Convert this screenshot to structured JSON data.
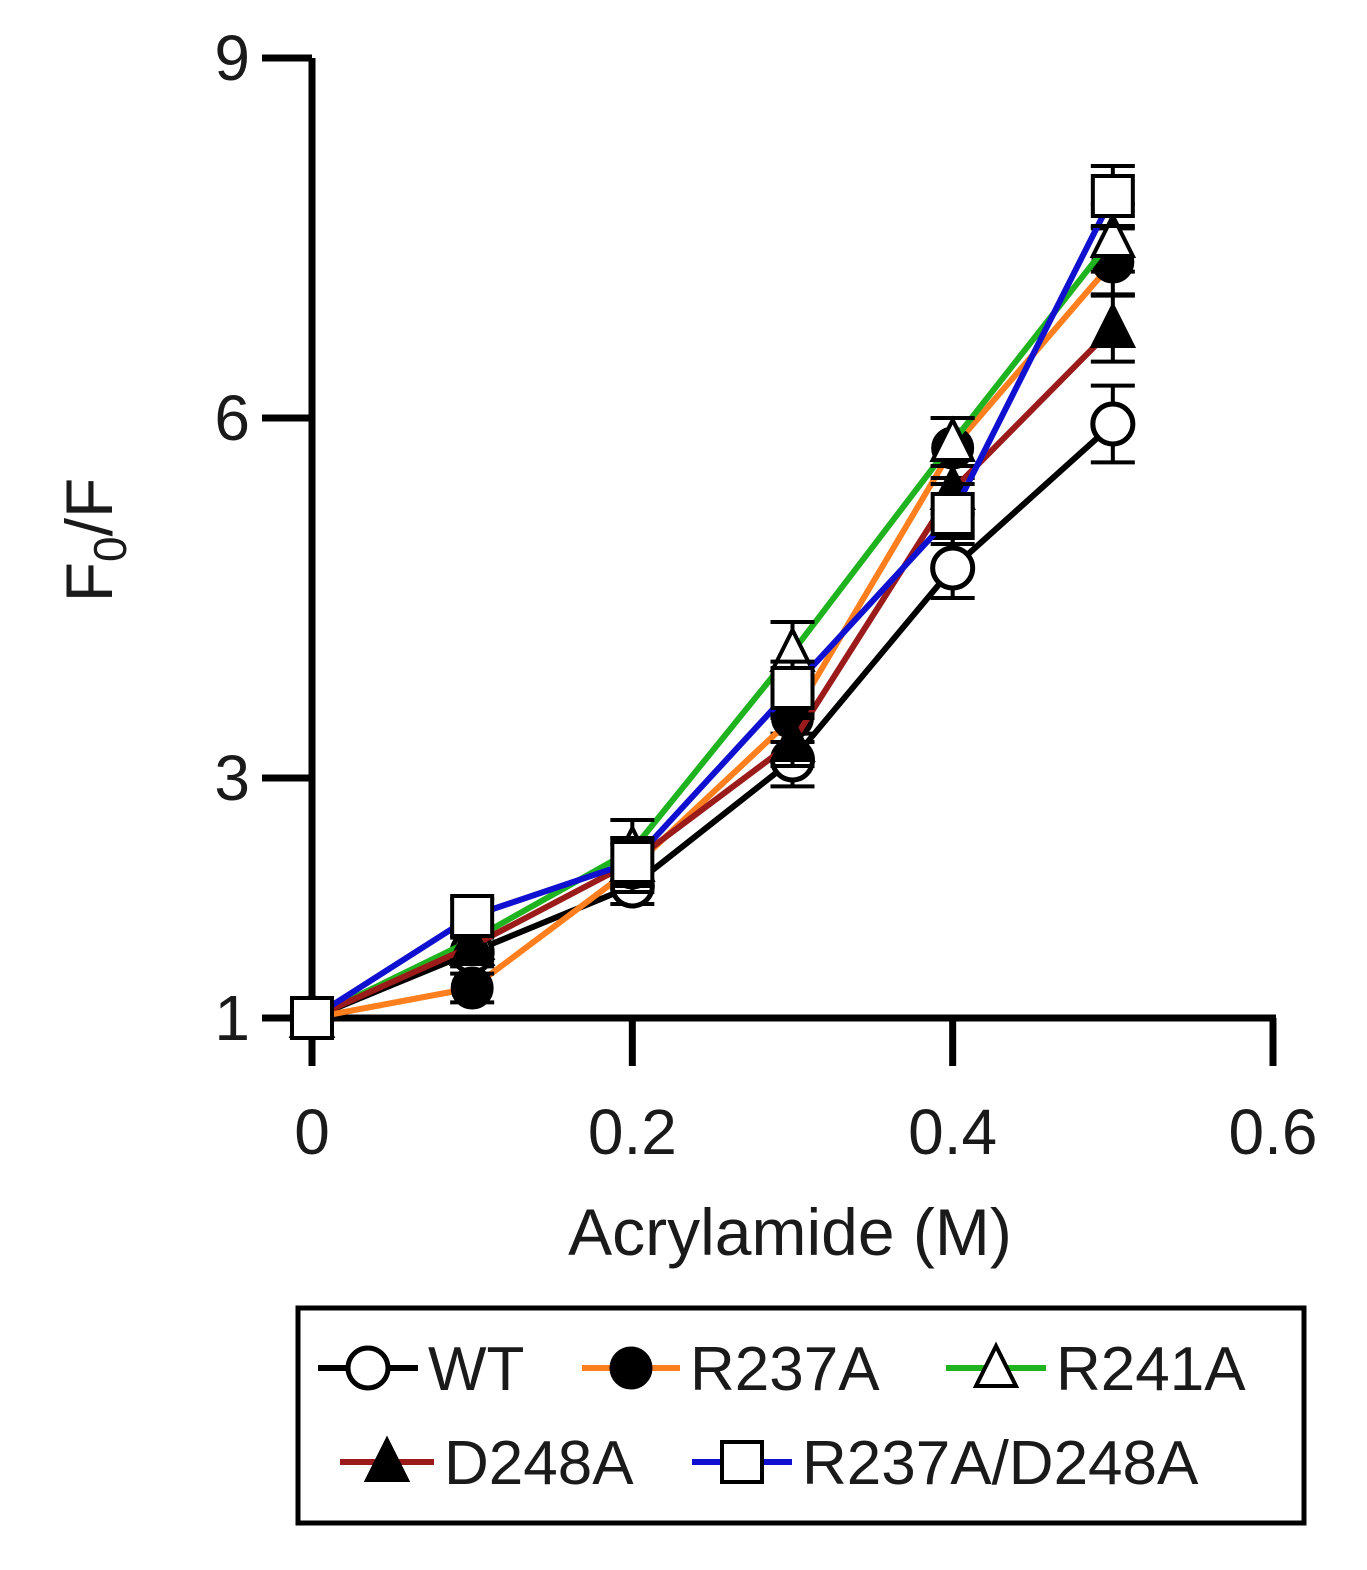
{
  "chart_data": {
    "type": "line",
    "title": "",
    "xlabel": "Acrylamide (M)",
    "ylabel_main": "F",
    "ylabel_sub": "0",
    "ylabel_tail": "/F",
    "xlim": [
      0,
      0.6
    ],
    "ylim": [
      1,
      9
    ],
    "xticks": [
      0,
      0.2,
      0.4,
      0.6
    ],
    "xtick_labels": [
      "0",
      "0.2",
      "0.4",
      "0.6"
    ],
    "yticks": [
      1,
      3,
      6,
      9
    ],
    "ytick_labels": [
      "1",
      "3",
      "6",
      "9"
    ],
    "x": [
      0,
      0.1,
      0.2,
      0.3,
      0.4,
      0.5
    ],
    "legend_position": "bottom",
    "series": [
      {
        "name": "WT",
        "color": "#000000",
        "marker": "circle-open",
        "values": [
          1.0,
          1.55,
          2.1,
          3.15,
          4.75,
          5.95
        ],
        "errors": [
          0.05,
          0.12,
          0.15,
          0.22,
          0.25,
          0.32
        ]
      },
      {
        "name": "R237A",
        "color": "#ff7f1e",
        "marker": "circle-filled",
        "values": [
          1.0,
          1.25,
          2.25,
          3.5,
          5.75,
          7.3
        ],
        "errors": [
          0.05,
          0.12,
          0.2,
          0.2,
          0.25,
          0.28
        ]
      },
      {
        "name": "R241A",
        "color": "#1fb41f",
        "marker": "triangle-open",
        "values": [
          1.0,
          1.65,
          2.4,
          4.05,
          5.8,
          7.5
        ],
        "errors": [
          0.05,
          0.12,
          0.25,
          0.25,
          0.2,
          0.28
        ]
      },
      {
        "name": "D248A",
        "color": "#9b1b1b",
        "marker": "triangle-filled",
        "values": [
          1.0,
          1.6,
          2.3,
          3.3,
          5.4,
          6.75
        ],
        "errors": [
          0.05,
          0.12,
          0.2,
          0.2,
          0.2,
          0.28
        ]
      },
      {
        "name": "R237A/D248A",
        "color": "#1010d0",
        "marker": "square-open",
        "values": [
          1.0,
          1.85,
          2.3,
          3.75,
          5.2,
          7.85
        ],
        "errors": [
          0.05,
          0.14,
          0.2,
          0.22,
          0.25,
          0.25
        ]
      }
    ]
  }
}
